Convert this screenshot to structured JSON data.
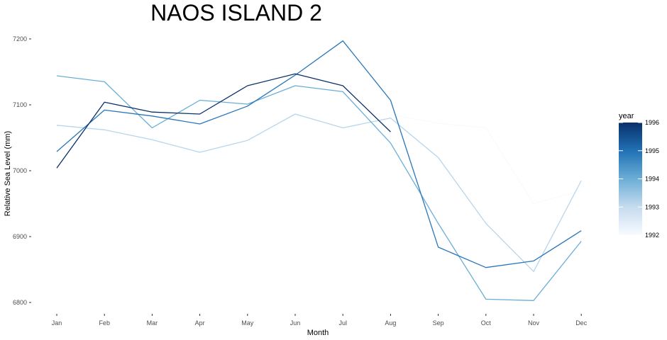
{
  "chart_data": {
    "type": "line",
    "title": "NAOS ISLAND 2",
    "xlabel": "Month",
    "ylabel": "Relative Sea Level (mm)",
    "categories": [
      "Jan",
      "Feb",
      "Mar",
      "Apr",
      "May",
      "Jun",
      "Jul",
      "Aug",
      "Sep",
      "Oct",
      "Nov",
      "Dec"
    ],
    "ylim": [
      6785,
      7215
    ],
    "yticks": [
      6800,
      6900,
      7000,
      7100,
      7200
    ],
    "grid": false,
    "series": [
      {
        "year": 1992,
        "color": "#f7fbff",
        "values": [
          null,
          null,
          null,
          null,
          null,
          null,
          null,
          7085,
          7072,
          7065,
          6950,
          6970
        ]
      },
      {
        "year": 1993,
        "color": "#b8d5eb",
        "values": [
          7069,
          7062,
          7047,
          7028,
          7046,
          7086,
          7065,
          7080,
          7020,
          6920,
          6847,
          6985
        ]
      },
      {
        "year": 1994,
        "color": "#6aaed6",
        "values": [
          7144,
          7135,
          7065,
          7107,
          7101,
          7129,
          7120,
          7042,
          6920,
          6805,
          6803,
          6893
        ]
      },
      {
        "year": 1995,
        "color": "#2a76b8",
        "values": [
          7029,
          7092,
          7083,
          7071,
          7098,
          7145,
          7197,
          7107,
          6884,
          6853,
          6863,
          6909
        ]
      },
      {
        "year": 1996,
        "color": "#08306b",
        "values": [
          7004,
          7104,
          7089,
          7086,
          7129,
          7147,
          7129,
          7059,
          null,
          null,
          null,
          null
        ]
      }
    ],
    "legend": {
      "title": "year",
      "position": "right",
      "range": [
        1992,
        1996
      ],
      "ticks": [
        "1992",
        "1993",
        "1994",
        "1995",
        "1996"
      ],
      "color_low": "#f7fbff",
      "color_high": "#08306b"
    }
  }
}
